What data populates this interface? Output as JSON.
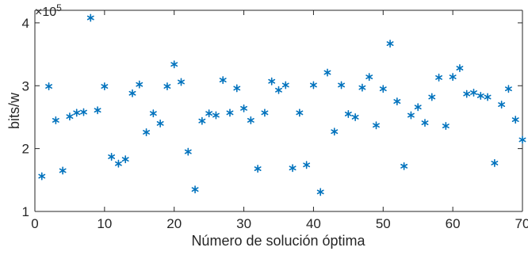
{
  "chart_data": {
    "type": "scatter",
    "title": "",
    "xlabel": "Número de solución óptima",
    "ylabel": "bits/w",
    "y_multiplier": {
      "base": "×10",
      "exponent": "5"
    },
    "xlim": [
      0,
      70
    ],
    "ylim": [
      1,
      4.2
    ],
    "x_ticks": [
      0,
      10,
      20,
      30,
      40,
      50,
      60,
      70
    ],
    "y_ticks": [
      1,
      2,
      3,
      4
    ],
    "grid": false,
    "marker": "asterisk",
    "colors": {
      "marker": "#0072BD",
      "axis": "#262626"
    },
    "x": [
      1,
      2,
      3,
      4,
      5,
      6,
      7,
      8,
      9,
      10,
      11,
      12,
      13,
      14,
      15,
      16,
      17,
      18,
      19,
      20,
      21,
      22,
      23,
      24,
      25,
      26,
      27,
      28,
      29,
      30,
      31,
      32,
      33,
      34,
      35,
      36,
      37,
      38,
      39,
      40,
      41,
      42,
      43,
      44,
      45,
      46,
      47,
      48,
      49,
      50,
      51,
      52,
      53,
      54,
      55,
      56,
      57,
      58,
      59,
      60,
      61,
      62,
      63,
      64,
      65,
      66,
      67,
      68,
      69,
      70
    ],
    "y": [
      1.56,
      2.99,
      2.45,
      1.65,
      2.51,
      2.57,
      2.58,
      4.08,
      2.61,
      2.99,
      1.87,
      1.76,
      1.83,
      2.88,
      3.02,
      2.26,
      2.56,
      2.4,
      2.99,
      3.34,
      3.06,
      1.95,
      1.35,
      2.44,
      2.56,
      2.53,
      3.09,
      2.57,
      2.96,
      2.64,
      2.45,
      1.68,
      2.57,
      3.07,
      2.93,
      3.01,
      1.69,
      2.57,
      1.74,
      3.01,
      1.31,
      3.21,
      2.27,
      3.01,
      2.55,
      2.5,
      2.97,
      3.14,
      2.37,
      2.95,
      3.67,
      2.75,
      1.72,
      2.53,
      2.66,
      2.41,
      2.82,
      3.13,
      2.36,
      3.14,
      3.28,
      2.87,
      2.89,
      2.84,
      2.82,
      1.77,
      2.7,
      2.95,
      2.46,
      2.14
    ]
  }
}
